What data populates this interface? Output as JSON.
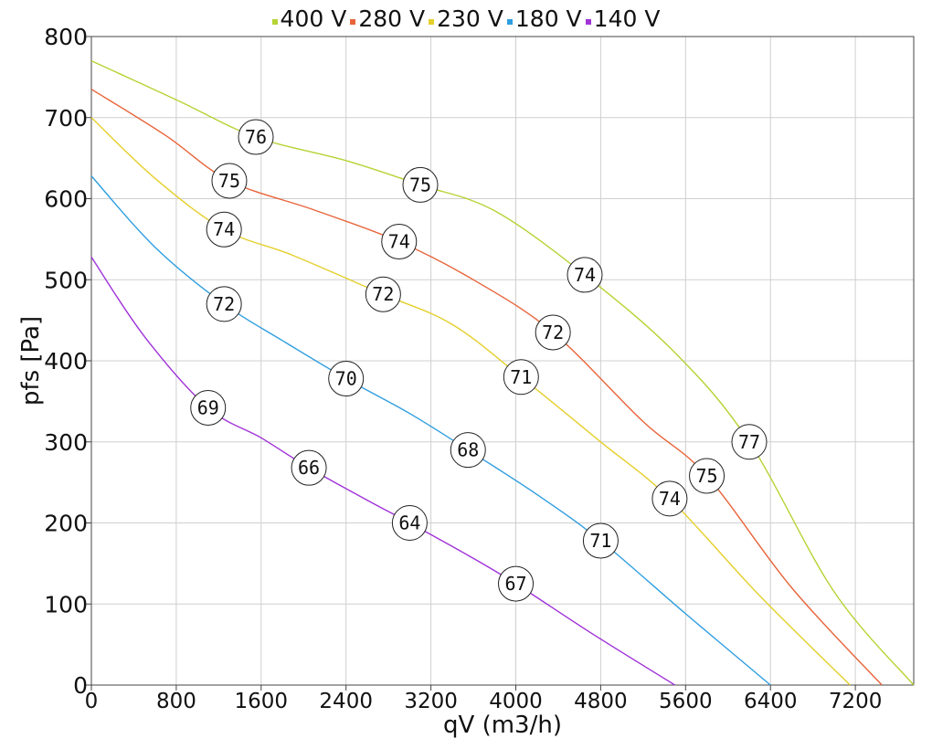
{
  "chart_data": {
    "type": "line",
    "xlabel": "qV (m3/h)",
    "ylabel": "pfs [Pa]",
    "xlim": [
      0,
      7750
    ],
    "ylim": [
      0,
      800
    ],
    "xticks": [
      0,
      800,
      1600,
      2400,
      3200,
      4000,
      4800,
      5600,
      6400,
      7200
    ],
    "yticks": [
      0,
      100,
      200,
      300,
      400,
      500,
      600,
      700,
      800
    ],
    "grid": true,
    "legend_position": "top-center",
    "series": [
      {
        "name": "400 V",
        "color": "#b5d334",
        "points": [
          [
            0,
            770
          ],
          [
            800,
            722
          ],
          [
            1550,
            676
          ],
          [
            2400,
            647
          ],
          [
            3100,
            617
          ],
          [
            3800,
            585
          ],
          [
            4650,
            506
          ],
          [
            5500,
            410
          ],
          [
            6200,
            300
          ],
          [
            7000,
            115
          ],
          [
            7750,
            0
          ]
        ],
        "markers": [
          {
            "x": 1550,
            "y": 676,
            "label": "76"
          },
          {
            "x": 3100,
            "y": 617,
            "label": "75"
          },
          {
            "x": 4650,
            "y": 506,
            "label": "74"
          },
          {
            "x": 6200,
            "y": 300,
            "label": "77"
          }
        ]
      },
      {
        "name": "280 V",
        "color": "#e8643a",
        "points": [
          [
            0,
            735
          ],
          [
            700,
            678
          ],
          [
            1300,
            622
          ],
          [
            2100,
            586
          ],
          [
            2900,
            547
          ],
          [
            3600,
            500
          ],
          [
            4350,
            435
          ],
          [
            5200,
            325
          ],
          [
            5800,
            258
          ],
          [
            6600,
            120
          ],
          [
            7450,
            0
          ]
        ],
        "markers": [
          {
            "x": 1300,
            "y": 622,
            "label": "75"
          },
          {
            "x": 2900,
            "y": 547,
            "label": "74"
          },
          {
            "x": 4350,
            "y": 435,
            "label": "72"
          },
          {
            "x": 5800,
            "y": 258,
            "label": "75"
          }
        ]
      },
      {
        "name": "230 V",
        "color": "#e5cf2c",
        "points": [
          [
            0,
            700
          ],
          [
            600,
            625
          ],
          [
            1250,
            562
          ],
          [
            1900,
            530
          ],
          [
            2750,
            482
          ],
          [
            3400,
            445
          ],
          [
            4050,
            380
          ],
          [
            4800,
            300
          ],
          [
            5450,
            230
          ],
          [
            6300,
            110
          ],
          [
            7150,
            0
          ]
        ],
        "markers": [
          {
            "x": 1250,
            "y": 562,
            "label": "74"
          },
          {
            "x": 2750,
            "y": 482,
            "label": "72"
          },
          {
            "x": 4050,
            "y": 380,
            "label": "71"
          },
          {
            "x": 5450,
            "y": 230,
            "label": "74"
          }
        ]
      },
      {
        "name": "180 V",
        "color": "#2f9ee0",
        "points": [
          [
            0,
            628
          ],
          [
            600,
            540
          ],
          [
            1250,
            470
          ],
          [
            1800,
            425
          ],
          [
            2400,
            378
          ],
          [
            3000,
            335
          ],
          [
            3550,
            290
          ],
          [
            4200,
            235
          ],
          [
            4800,
            178
          ],
          [
            5600,
            88
          ],
          [
            6400,
            0
          ]
        ],
        "markers": [
          {
            "x": 1250,
            "y": 470,
            "label": "72"
          },
          {
            "x": 2400,
            "y": 378,
            "label": "70"
          },
          {
            "x": 3550,
            "y": 290,
            "label": "68"
          },
          {
            "x": 4800,
            "y": 178,
            "label": "71"
          }
        ]
      },
      {
        "name": "140 V",
        "color": "#a032d8",
        "points": [
          [
            0,
            528
          ],
          [
            500,
            430
          ],
          [
            1100,
            342
          ],
          [
            1600,
            305
          ],
          [
            2050,
            268
          ],
          [
            2600,
            228
          ],
          [
            3000,
            200
          ],
          [
            3550,
            160
          ],
          [
            4000,
            125
          ],
          [
            4700,
            65
          ],
          [
            5500,
            0
          ]
        ],
        "markers": [
          {
            "x": 1100,
            "y": 342,
            "label": "69"
          },
          {
            "x": 2050,
            "y": 268,
            "label": "66"
          },
          {
            "x": 3000,
            "y": 200,
            "label": "64"
          },
          {
            "x": 4000,
            "y": 125,
            "label": "67"
          }
        ]
      }
    ]
  }
}
